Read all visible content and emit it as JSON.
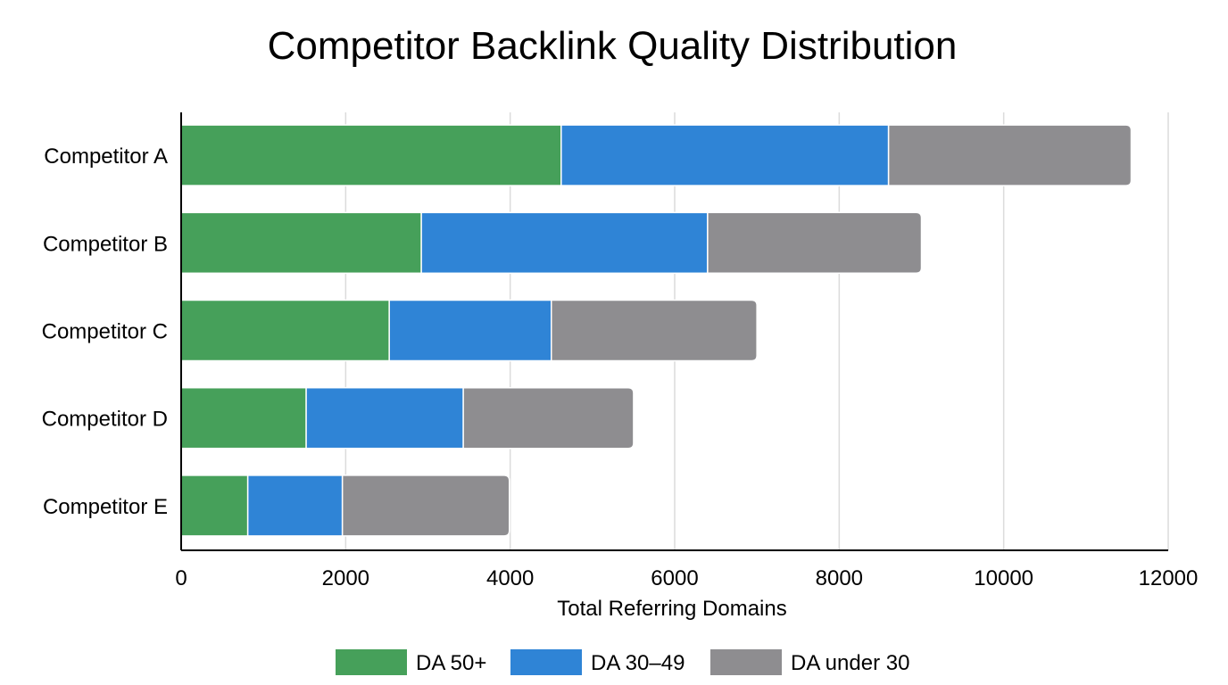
{
  "chart_data": {
    "type": "bar",
    "orientation": "horizontal",
    "stacked": true,
    "title": "Competitor Backlink Quality Distribution",
    "xlabel": "Total Referring Domains",
    "ylabel": "",
    "xlim": [
      0,
      12000
    ],
    "xticks": [
      "0",
      "2000",
      "4000",
      "6000",
      "8000",
      "10000",
      "12000"
    ],
    "grid": true,
    "legend_position": "bottom",
    "categories": [
      "Competitor A",
      "Competitor B",
      "Competitor C",
      "Competitor D",
      "Competitor E"
    ],
    "series": [
      {
        "name": "DA 50+",
        "color": "#46a05a",
        "values": [
          4620,
          2920,
          2530,
          1520,
          810
        ]
      },
      {
        "name": "DA 30–49",
        "color": "#2f84d6",
        "values": [
          3980,
          3480,
          1970,
          1910,
          1150
        ]
      },
      {
        "name": "DA under 30",
        "color": "#8e8d90",
        "values": [
          2950,
          2600,
          2500,
          2070,
          2030
        ]
      }
    ]
  }
}
